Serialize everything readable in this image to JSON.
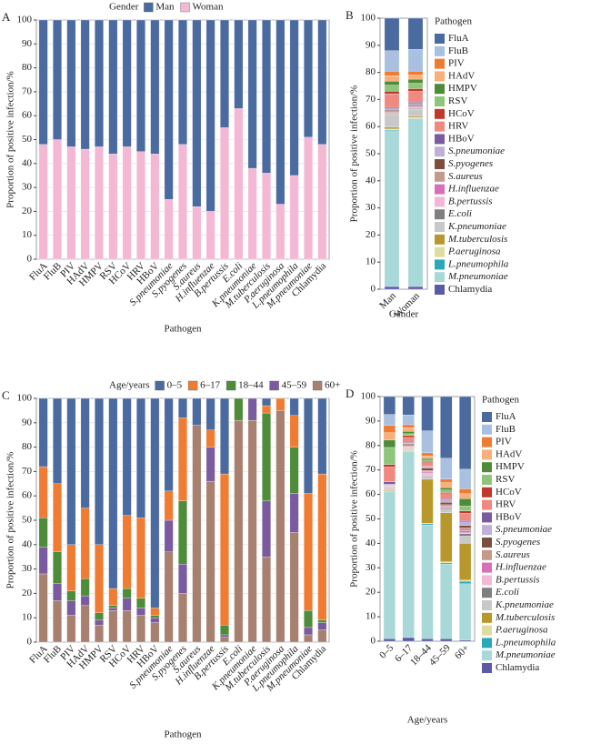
{
  "chart_data": [
    {
      "type": "bar",
      "stacked": true,
      "panel": "A",
      "legend": "top",
      "legend_title": "Gender",
      "grid": true,
      "x_label": "Pathogen",
      "y_label": "Proportion of positive infection/%",
      "ylim": [
        0,
        100
      ],
      "yticks": [
        0,
        10,
        20,
        30,
        40,
        50,
        60,
        70,
        80,
        90,
        100
      ],
      "categories": [
        "FluA",
        "FluB",
        "PIV",
        "HAdV",
        "HMPV",
        "RSV",
        "HCoV",
        "HRV",
        "HBoV",
        "S.pneumoniae",
        "S.pyogenes",
        "S.aureus",
        "H.influenzae",
        "B.pertussis",
        "E.coli",
        "K.pneumoniae",
        "M.tuberculosis",
        "P.aeruginosa",
        "L.pneumophila",
        "M.pneumoniae",
        "Chlamydia"
      ],
      "series": [
        {
          "name": "Man",
          "color": "#4a6aa0",
          "values": [
            52,
            50,
            53,
            54,
            53,
            56,
            53,
            55,
            56,
            75,
            52,
            78,
            80,
            45,
            37,
            62,
            64,
            77,
            65,
            49,
            52
          ]
        },
        {
          "name": "Woman",
          "color": "#f4b8d4",
          "values": [
            48,
            50,
            47,
            46,
            47,
            44,
            47,
            45,
            44,
            25,
            48,
            22,
            20,
            55,
            63,
            38,
            36,
            23,
            35,
            51,
            48
          ]
        }
      ]
    },
    {
      "type": "bar",
      "stacked": true,
      "panel": "B",
      "legend": "right",
      "legend_title": "Pathogen",
      "grid": false,
      "x_label": "Gender",
      "y_label": "Proportion of positive infection/%",
      "ylim": [
        0,
        100
      ],
      "yticks": [
        0,
        10,
        20,
        30,
        40,
        50,
        60,
        70,
        80,
        90,
        100
      ],
      "categories": [
        "Man",
        "Woman"
      ],
      "series": [
        {
          "name": "FluA",
          "color": "#4a6aa0",
          "values": [
            12,
            11.5
          ]
        },
        {
          "name": "FluB",
          "color": "#a9c0e0",
          "values": [
            7.5,
            8
          ]
        },
        {
          "name": "PIV",
          "color": "#f07b32",
          "values": [
            1.7,
            1.5
          ]
        },
        {
          "name": "HAdV",
          "color": "#f8b07a",
          "values": [
            2,
            1.5
          ]
        },
        {
          "name": "HMPV",
          "color": "#4e8c3a",
          "values": [
            1.5,
            1.5
          ]
        },
        {
          "name": "RSV",
          "color": "#8dc67a",
          "values": [
            2.2,
            2
          ]
        },
        {
          "name": "HCoV",
          "color": "#c0392b",
          "values": [
            1,
            1
          ]
        },
        {
          "name": "HRV",
          "color": "#f08a80",
          "values": [
            5,
            4
          ]
        },
        {
          "name": "HBoV",
          "color": "#7a5ba0",
          "values": [
            0.5,
            0.5
          ]
        },
        {
          "name": "S.pneumoniae",
          "color": "#c0b0d8",
          "values": [
            0.6,
            0.5
          ]
        },
        {
          "name": "S.pyogenes",
          "color": "#7d4e3e",
          "values": [
            0.4,
            0.4
          ]
        },
        {
          "name": "S.aureus",
          "color": "#c49a8a",
          "values": [
            0.4,
            0.3
          ]
        },
        {
          "name": "H.influenzae",
          "color": "#d870b8",
          "values": [
            0.3,
            0.3
          ]
        },
        {
          "name": "B.pertussis",
          "color": "#f4b8d4",
          "values": [
            0.3,
            0.3
          ]
        },
        {
          "name": "E.coli",
          "color": "#7f7f7f",
          "values": [
            0.3,
            0.3
          ]
        },
        {
          "name": "K.pneumoniae",
          "color": "#c8c8c8",
          "values": [
            4.5,
            2.5
          ]
        },
        {
          "name": "M.tuberculosis",
          "color": "#b8982c",
          "values": [
            0.7,
            0.5
          ]
        },
        {
          "name": "P.aeruginosa",
          "color": "#e0dca0",
          "values": [
            0.3,
            0.2
          ]
        },
        {
          "name": "L.pneumophila",
          "color": "#2ba8b8",
          "values": [
            0.3,
            0.2
          ]
        },
        {
          "name": "M.pneumoniae",
          "color": "#a8d8d8",
          "values": [
            57.5,
            62
          ]
        },
        {
          "name": "Chlamydia",
          "color": "#5a5aa8",
          "values": [
            1,
            1
          ]
        }
      ]
    },
    {
      "type": "bar",
      "stacked": true,
      "panel": "C",
      "legend": "top",
      "legend_title": "Age/years",
      "grid": true,
      "x_label": "Pathogen",
      "y_label": "Proportion of positive infection/%",
      "ylim": [
        0,
        100
      ],
      "yticks": [
        0,
        10,
        20,
        30,
        40,
        50,
        60,
        70,
        80,
        90,
        100
      ],
      "categories": [
        "FluA",
        "FluB",
        "PIV",
        "HAdV",
        "HMPV",
        "RSV",
        "HCoV",
        "HRV",
        "HBoV",
        "S.pneumoniae",
        "S.pyogenes",
        "S.aureus",
        "H.influenzae",
        "B.pertussis",
        "E.coli",
        "K.pneumoniae",
        "M.tuberculosis",
        "P.aeruginosa",
        "L.pneumophila",
        "M.pneumoniae",
        "Chlamydia"
      ],
      "series": [
        {
          "name": "0–5",
          "color": "#4a6aa0",
          "values": [
            28,
            35,
            60,
            45,
            60,
            78,
            48,
            49,
            86,
            38,
            8,
            11,
            13,
            31,
            0,
            0,
            3,
            0,
            7,
            39,
            31
          ]
        },
        {
          "name": "6–17",
          "color": "#f07b32",
          "values": [
            21,
            28,
            19,
            29,
            28,
            7,
            30,
            33,
            3,
            12,
            34,
            0,
            7,
            62,
            0,
            0,
            3,
            5,
            13,
            48,
            60
          ]
        },
        {
          "name": "18–44",
          "color": "#4e8c3a",
          "values": [
            12,
            13,
            4,
            7,
            3,
            1,
            4,
            4,
            1,
            0,
            26,
            0,
            0,
            4,
            9,
            0,
            36,
            0,
            19,
            7,
            1
          ]
        },
        {
          "name": "45–59",
          "color": "#7a5ba0",
          "values": [
            11,
            7,
            6,
            4,
            2,
            1,
            5,
            3,
            2,
            13,
            12,
            0,
            14,
            1,
            0,
            9,
            23,
            0,
            16,
            3,
            3
          ]
        },
        {
          "name": "60+",
          "color": "#a88070",
          "values": [
            28,
            17,
            11,
            15,
            7,
            13,
            13,
            11,
            8,
            37,
            20,
            89,
            66,
            2,
            91,
            91,
            35,
            95,
            45,
            3,
            5
          ]
        }
      ]
    },
    {
      "type": "bar",
      "stacked": true,
      "panel": "D",
      "legend": "right",
      "legend_title": "Pathogen",
      "grid": false,
      "x_label": "Age/years",
      "y_label": "Proportion of positive infection/%",
      "ylim": [
        0,
        100
      ],
      "yticks": [
        0,
        10,
        20,
        30,
        40,
        50,
        60,
        70,
        80,
        90,
        100
      ],
      "categories": [
        "0–5",
        "6–17",
        "18–44",
        "45–59",
        "60+"
      ],
      "series": [
        {
          "name": "FluA",
          "color": "#4a6aa0",
          "values": [
            7.3,
            7.5,
            14,
            25.2,
            29.7
          ]
        },
        {
          "name": "FluB",
          "color": "#a9c0e0",
          "values": [
            4.5,
            4,
            9,
            8.5,
            8
          ]
        },
        {
          "name": "PIV",
          "color": "#f07b32",
          "values": [
            3,
            1.2,
            1.3,
            1.5,
            2
          ]
        },
        {
          "name": "HAdV",
          "color": "#f8b07a",
          "values": [
            3,
            1.5,
            1,
            2,
            2
          ]
        },
        {
          "name": "HMPV",
          "color": "#4e8c3a",
          "values": [
            3,
            1,
            0.7,
            1,
            3
          ]
        },
        {
          "name": "RSV",
          "color": "#8dc67a",
          "values": [
            7,
            0.7,
            0.5,
            1,
            2
          ]
        },
        {
          "name": "HCoV",
          "color": "#c0392b",
          "values": [
            1,
            0.8,
            0.5,
            0.5,
            1
          ]
        },
        {
          "name": "HRV",
          "color": "#f08a80",
          "values": [
            6,
            2,
            1.5,
            2,
            3
          ]
        },
        {
          "name": "HBoV",
          "color": "#7a5ba0",
          "values": [
            1,
            0.3,
            0.3,
            0.5,
            0.5
          ]
        },
        {
          "name": "S.pneumoniae",
          "color": "#c0b0d8",
          "values": [
            0.5,
            0.4,
            0.4,
            1,
            1.5
          ]
        },
        {
          "name": "S.pyogenes",
          "color": "#7d4e3e",
          "values": [
            0.2,
            0.6,
            1,
            1,
            1
          ]
        },
        {
          "name": "S.aureus",
          "color": "#c49a8a",
          "values": [
            0.2,
            0.3,
            0.5,
            0.5,
            1
          ]
        },
        {
          "name": "H.influenzae",
          "color": "#d870b8",
          "values": [
            0.3,
            0.3,
            0.5,
            0.5,
            1
          ]
        },
        {
          "name": "B.pertussis",
          "color": "#f4b8d4",
          "values": [
            0.3,
            0.5,
            0.8,
            0.3,
            0.3
          ]
        },
        {
          "name": "E.coli",
          "color": "#7f7f7f",
          "values": [
            0.2,
            0.2,
            0.3,
            0.5,
            1
          ]
        },
        {
          "name": "K.pneumoniae",
          "color": "#c8c8c8",
          "values": [
            0.7,
            0.5,
            1.5,
            1.5,
            3
          ]
        },
        {
          "name": "M.tuberculosis",
          "color": "#b8982c",
          "values": [
            0.3,
            0.3,
            18,
            20,
            15
          ]
        },
        {
          "name": "P.aeruginosa",
          "color": "#e0dca0",
          "values": [
            0.2,
            0.2,
            0.2,
            0.5,
            0.5
          ]
        },
        {
          "name": "L.pneumophila",
          "color": "#2ba8b8",
          "values": [
            0.3,
            0.2,
            0.5,
            0.5,
            1
          ]
        },
        {
          "name": "M.pneumoniae",
          "color": "#a8d8d8",
          "values": [
            60,
            76,
            46.5,
            30.5,
            23
          ]
        },
        {
          "name": "Chlamydia",
          "color": "#5a5aa8",
          "values": [
            1,
            1.5,
            1,
            1,
            0.5
          ]
        }
      ]
    }
  ]
}
